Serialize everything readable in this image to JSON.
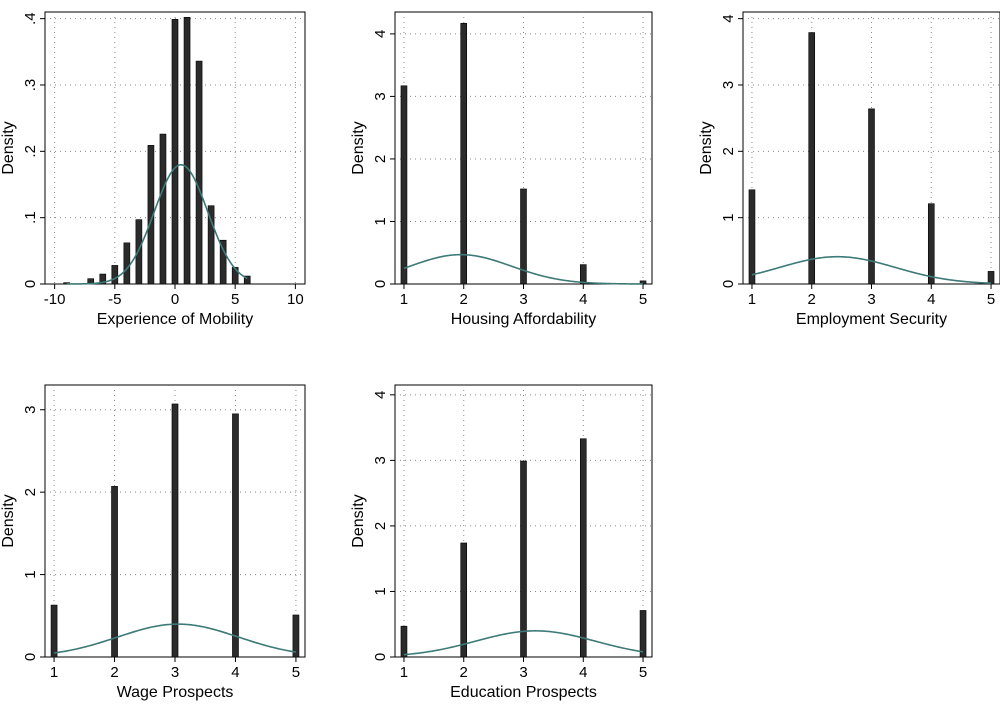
{
  "chart_data": [
    {
      "type": "bar",
      "xlabel": "Experience of Mobility",
      "ylabel": "Density",
      "xlim": [
        -10.8,
        10.8
      ],
      "ylim": [
        0,
        0.41
      ],
      "xticks": [
        -10,
        -5,
        0,
        5,
        10
      ],
      "xtick_labels": [
        "-10",
        "-5",
        "0",
        "5",
        "10"
      ],
      "yticks": [
        0,
        0.1,
        0.2,
        0.3,
        0.4
      ],
      "ytick_labels": [
        "0",
        ".1",
        ".2",
        ".3",
        ".4"
      ],
      "bar_width": 0.5,
      "x": [
        -9,
        -7,
        -6,
        -5,
        -4,
        -3,
        -2,
        -1,
        0,
        1,
        2,
        3,
        4,
        5,
        6
      ],
      "values": [
        0.002,
        0.008,
        0.015,
        0.028,
        0.062,
        0.097,
        0.209,
        0.226,
        0.399,
        0.402,
        0.336,
        0.118,
        0.066,
        0.025,
        0.012
      ],
      "density_curve": {
        "type": "normal",
        "mean": 0.5,
        "sd": 2.22
      },
      "grid": true,
      "bar_color": "#2b2b2b",
      "curve_color": "#3c7a78"
    },
    {
      "type": "bar",
      "xlabel": "Housing Affordability",
      "ylabel": "Density",
      "xlim": [
        0.85,
        5.15
      ],
      "ylim": [
        0,
        4.35
      ],
      "xticks": [
        1,
        2,
        3,
        4,
        5
      ],
      "xtick_labels": [
        "1",
        "2",
        "3",
        "4",
        "5"
      ],
      "yticks": [
        0,
        1,
        2,
        3,
        4
      ],
      "ytick_labels": [
        "0",
        "1",
        "2",
        "3",
        "4"
      ],
      "bar_width": 0.1,
      "x": [
        1,
        2,
        3,
        4,
        5
      ],
      "values": [
        3.17,
        4.17,
        1.52,
        0.31,
        0.05
      ],
      "density_curve": {
        "type": "normal",
        "mean": 1.95,
        "sd": 0.85
      },
      "grid": true,
      "bar_color": "#2b2b2b",
      "curve_color": "#3c7a78"
    },
    {
      "type": "bar",
      "xlabel": "Employment Security",
      "ylabel": "Density",
      "xlim": [
        0.85,
        5.15
      ],
      "ylim": [
        0,
        4.1
      ],
      "xticks": [
        1,
        2,
        3,
        4,
        5
      ],
      "xtick_labels": [
        "1",
        "2",
        "3",
        "4",
        "5"
      ],
      "yticks": [
        0,
        1,
        2,
        3,
        4
      ],
      "ytick_labels": [
        "0",
        "1",
        "2",
        "3",
        "4"
      ],
      "bar_width": 0.1,
      "x": [
        1,
        2,
        3,
        4,
        5
      ],
      "values": [
        1.42,
        3.79,
        2.64,
        1.21,
        0.19
      ],
      "density_curve": {
        "type": "normal",
        "mean": 2.43,
        "sd": 0.97
      },
      "grid": true,
      "bar_color": "#2b2b2b",
      "curve_color": "#3c7a78"
    },
    {
      "type": "bar",
      "xlabel": "Wage Prospects",
      "ylabel": "Density",
      "xlim": [
        0.85,
        5.15
      ],
      "ylim": [
        0,
        3.3
      ],
      "xticks": [
        1,
        2,
        3,
        4,
        5
      ],
      "xtick_labels": [
        "1",
        "2",
        "3",
        "4",
        "5"
      ],
      "yticks": [
        0,
        1,
        2,
        3
      ],
      "ytick_labels": [
        "0",
        "1",
        "2",
        "3"
      ],
      "bar_width": 0.1,
      "x": [
        1,
        2,
        3,
        4,
        5
      ],
      "values": [
        0.63,
        2.07,
        3.07,
        2.95,
        0.51
      ],
      "density_curve": {
        "type": "normal",
        "mean": 3.05,
        "sd": 1.0
      },
      "grid": true,
      "bar_color": "#2b2b2b",
      "curve_color": "#3c7a78"
    },
    {
      "type": "bar",
      "xlabel": "Education Prospects",
      "ylabel": "Density",
      "xlim": [
        0.85,
        5.15
      ],
      "ylim": [
        0,
        4.15
      ],
      "xticks": [
        1,
        2,
        3,
        4,
        5
      ],
      "xtick_labels": [
        "1",
        "2",
        "3",
        "4",
        "5"
      ],
      "yticks": [
        0,
        1,
        2,
        3,
        4
      ],
      "ytick_labels": [
        "0",
        "1",
        "2",
        "3",
        "4"
      ],
      "bar_width": 0.1,
      "x": [
        1,
        2,
        3,
        4,
        5
      ],
      "values": [
        0.47,
        1.74,
        2.99,
        3.33,
        0.71
      ],
      "density_curve": {
        "type": "normal",
        "mean": 3.2,
        "sd": 1.0
      },
      "grid": true,
      "bar_color": "#2b2b2b",
      "curve_color": "#3c7a78"
    }
  ]
}
